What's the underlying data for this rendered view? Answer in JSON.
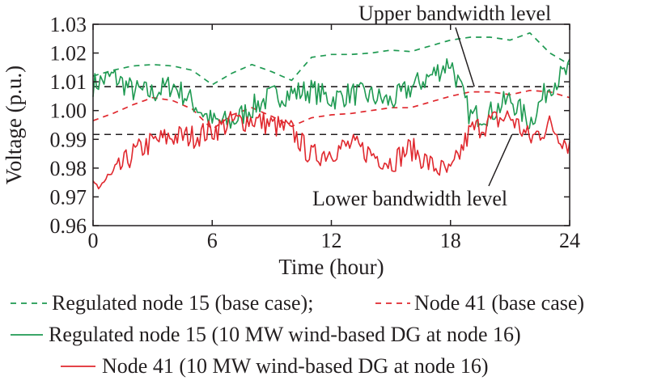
{
  "chart_data": {
    "type": "line",
    "xlabel": "Time (hour)",
    "ylabel": "Voltage (p.u.)",
    "xlim": [
      0,
      24
    ],
    "ylim": [
      0.96,
      1.03
    ],
    "xticks": [
      0,
      6,
      12,
      18,
      24
    ],
    "xtick_labels": [
      "0",
      "6",
      "12",
      "18",
      "24"
    ],
    "yticks": [
      0.96,
      0.97,
      0.98,
      0.99,
      1.0,
      1.01,
      1.02,
      1.03
    ],
    "ytick_labels": [
      "0.96",
      "0.97",
      "0.98",
      "0.99",
      "1.00",
      "1.01",
      "1.02",
      "1.03"
    ],
    "grid": false,
    "legend_position": "bottom",
    "reference_lines": [
      {
        "label": "Upper bandwidth level",
        "y": 1.0083,
        "style": "dashed",
        "color": "#231f20"
      },
      {
        "label": "Lower bandwidth level",
        "y": 0.9917,
        "style": "dashed",
        "color": "#231f20"
      }
    ],
    "annotations": [
      {
        "text": "Upper bandwidth level",
        "points_to": {
          "x": 19.2,
          "y": 1.0083
        }
      },
      {
        "text": "Lower bandwidth level",
        "points_to": {
          "x": 21.1,
          "y": 0.9917
        }
      }
    ],
    "series": [
      {
        "name": "Regulated node 15 (base case);",
        "color": "#1f9a52",
        "style": "dashed",
        "x": [
          0,
          1,
          2,
          3,
          4,
          5,
          6,
          7,
          8,
          9,
          10,
          11,
          12,
          13,
          14,
          15,
          16,
          17,
          18,
          19,
          20,
          21,
          22,
          23,
          24
        ],
        "y": [
          1.012,
          1.014,
          1.0155,
          1.016,
          1.0155,
          1.014,
          1.009,
          1.013,
          1.016,
          1.0135,
          1.0105,
          1.0185,
          1.0195,
          1.0195,
          1.02,
          1.021,
          1.0205,
          1.0225,
          1.0245,
          1.0255,
          1.0255,
          1.0245,
          1.027,
          1.02,
          1.016
        ]
      },
      {
        "name": "Node 41 (base case)",
        "color": "#e0282e",
        "style": "dashed",
        "x": [
          0,
          1,
          2,
          3,
          4,
          5,
          6,
          7,
          8,
          9,
          10,
          11,
          12,
          13,
          14,
          15,
          16,
          17,
          18,
          19,
          20,
          21,
          22,
          23,
          24
        ],
        "y": [
          0.9965,
          0.999,
          1.002,
          1.0045,
          1.0035,
          1.0005,
          0.9935,
          0.9985,
          1.001,
          0.998,
          0.9945,
          0.9975,
          0.9985,
          0.999,
          1.0,
          1.001,
          1.001,
          1.003,
          1.005,
          1.0065,
          1.0065,
          1.0055,
          1.007,
          1.0065,
          1.0045
        ]
      },
      {
        "name": "Regulated node 15 (10 MW wind-based DG at node 16)",
        "color": "#1f9a52",
        "style": "solid",
        "x": [
          0,
          1,
          2,
          3,
          4,
          5,
          6,
          7,
          8,
          9,
          10,
          11,
          12,
          13,
          14,
          15,
          16,
          17,
          18,
          19,
          20,
          21,
          22,
          23,
          24
        ],
        "y": [
          1.009,
          1.012,
          1.007,
          1.006,
          1.009,
          1.003,
          0.996,
          0.996,
          1.001,
          1.005,
          1.006,
          1.007,
          1.004,
          1.006,
          1.005,
          1.003,
          1.008,
          1.012,
          1.017,
          0.998,
          0.999,
          1.004,
          0.996,
          1.009,
          1.014
        ]
      },
      {
        "name": "Node 41 (10 MW wind-based DG at node 16)",
        "color": "#e0282e",
        "style": "solid",
        "x": [
          0,
          1,
          2,
          3,
          4,
          5,
          6,
          7,
          8,
          9,
          10,
          11,
          12,
          13,
          14,
          15,
          16,
          17,
          18,
          19,
          20,
          21,
          22,
          23,
          24
        ],
        "y": [
          0.973,
          0.977,
          0.985,
          0.989,
          0.991,
          0.991,
          0.993,
          0.996,
          0.997,
          0.995,
          0.993,
          0.984,
          0.986,
          0.988,
          0.985,
          0.982,
          0.987,
          0.981,
          0.978,
          0.993,
          0.996,
          0.998,
          0.99,
          0.995,
          0.988
        ]
      }
    ]
  }
}
